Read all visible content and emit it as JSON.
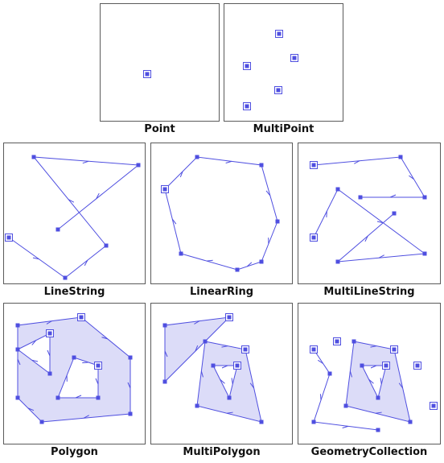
{
  "colors": {
    "stroke": "#4f4fe0",
    "fill": "#dcdcf8",
    "vertex": "#4f4fe0",
    "border": "#5a5a5a",
    "caption": "#111111"
  },
  "panels": [
    {
      "key": "point",
      "label": "Point"
    },
    {
      "key": "multipoint",
      "label": "MultiPoint"
    },
    {
      "key": "linestring",
      "label": "LineString"
    },
    {
      "key": "linearring",
      "label": "LinearRing"
    },
    {
      "key": "multilinestring",
      "label": "MultiLineString"
    },
    {
      "key": "polygon",
      "label": "Polygon"
    },
    {
      "key": "multipolygon",
      "label": "MultiPolygon"
    },
    {
      "key": "geometrycollection",
      "label": "GeometryCollection"
    }
  ]
}
